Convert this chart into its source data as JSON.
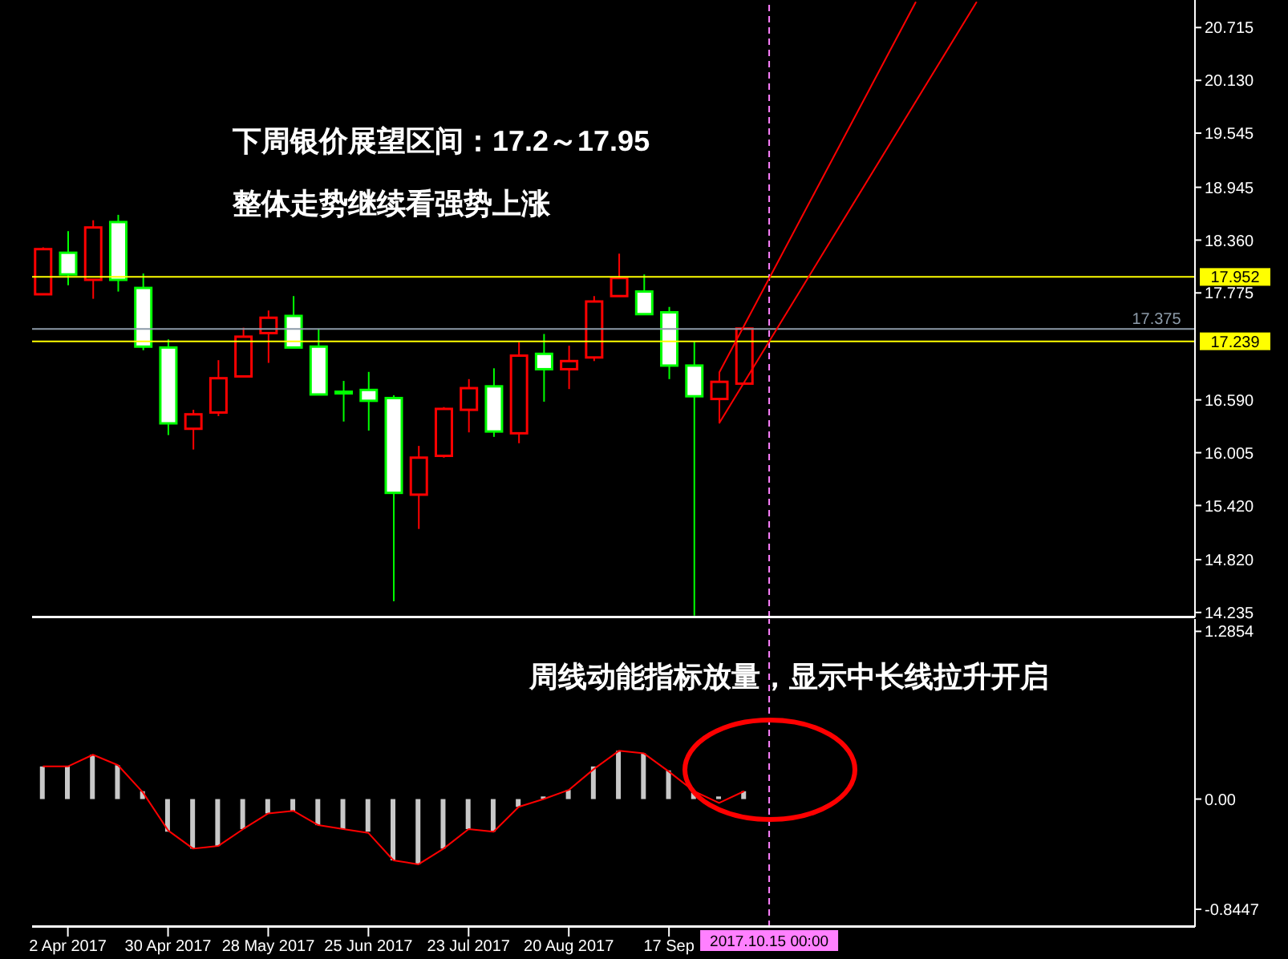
{
  "chart_data": [
    {
      "type": "candlestick",
      "annotations": [
        "下周银价展望区间：17.2～17.95",
        "整体走势继续看强势上涨"
      ],
      "x": [
        "2017-03-26",
        "2017-04-02",
        "2017-04-09",
        "2017-04-16",
        "2017-04-23",
        "2017-04-30",
        "2017-05-07",
        "2017-05-14",
        "2017-05-21",
        "2017-05-28",
        "2017-06-04",
        "2017-06-11",
        "2017-06-18",
        "2017-06-25",
        "2017-07-02",
        "2017-07-09",
        "2017-07-16",
        "2017-07-23",
        "2017-07-30",
        "2017-08-06",
        "2017-08-13",
        "2017-08-20",
        "2017-08-27",
        "2017-09-03",
        "2017-09-10",
        "2017-09-17",
        "2017-09-24",
        "2017-10-01",
        "2017-10-08"
      ],
      "ohlc": [
        [
          17.76,
          18.28,
          17.76,
          18.26
        ],
        [
          18.22,
          18.46,
          17.86,
          17.98
        ],
        [
          17.92,
          18.58,
          17.71,
          18.5
        ],
        [
          18.56,
          18.64,
          17.79,
          17.92
        ],
        [
          17.83,
          17.99,
          17.14,
          17.18
        ],
        [
          17.17,
          17.26,
          16.2,
          16.33
        ],
        [
          16.27,
          16.48,
          16.04,
          16.43
        ],
        [
          16.45,
          17.03,
          16.41,
          16.83
        ],
        [
          16.85,
          17.39,
          16.85,
          17.29
        ],
        [
          17.33,
          17.58,
          17.0,
          17.5
        ],
        [
          17.52,
          17.74,
          17.17,
          17.17
        ],
        [
          17.18,
          17.38,
          16.65,
          16.65
        ],
        [
          16.68,
          16.8,
          16.35,
          16.68
        ],
        [
          16.7,
          16.9,
          16.25,
          16.58
        ],
        [
          16.61,
          16.64,
          14.36,
          15.56
        ],
        [
          15.54,
          16.08,
          15.16,
          15.95
        ],
        [
          15.97,
          16.51,
          15.95,
          16.49
        ],
        [
          16.48,
          16.82,
          16.23,
          16.72
        ],
        [
          16.74,
          16.94,
          16.18,
          16.24
        ],
        [
          16.22,
          17.23,
          16.11,
          17.08
        ],
        [
          17.1,
          17.32,
          16.57,
          16.93
        ],
        [
          16.93,
          17.19,
          16.71,
          17.02
        ],
        [
          17.06,
          17.74,
          17.02,
          17.68
        ],
        [
          17.74,
          18.21,
          17.74,
          17.94
        ],
        [
          17.79,
          17.98,
          17.54,
          17.54
        ],
        [
          17.56,
          17.62,
          16.82,
          16.97
        ],
        [
          16.97,
          17.24,
          14.2,
          16.63
        ],
        [
          16.6,
          16.89,
          16.33,
          16.79
        ],
        [
          16.77,
          17.38,
          16.77,
          17.38
        ]
      ],
      "colors": [
        "#ff0000",
        "#00ff00",
        "#ff0000",
        "#00ff00",
        "#00ff00",
        "#00ff00",
        "#ff0000",
        "#ff0000",
        "#ff0000",
        "#ff0000",
        "#00ff00",
        "#00ff00",
        "#00ff00",
        "#00ff00",
        "#00ff00",
        "#ff0000",
        "#ff0000",
        "#ff0000",
        "#00ff00",
        "#ff0000",
        "#00ff00",
        "#ff0000",
        "#ff0000",
        "#ff0000",
        "#00ff00",
        "#00ff00",
        "#00ff00",
        "#ff0000",
        "#ff0000"
      ],
      "series": [
        {
          "type": "line",
          "color": "#ff0000",
          "x": [
            "2017-10-01",
            "2017-11-25"
          ],
          "values": [
            16.89,
            21.0
          ]
        },
        {
          "type": "line",
          "color": "#ff0000",
          "x": [
            "2017-10-01",
            "2017-12-12"
          ],
          "values": [
            16.33,
            21.0
          ]
        }
      ],
      "xlim": [
        "2017-03-23",
        "2018-02-11"
      ],
      "ylim": [
        14.18,
        21.02
      ],
      "yticks": [
        20.715,
        {
          "value": 20.13,
          "label": "20.130"
        },
        19.545,
        18.945,
        {
          "value": 18.36,
          "label": "18.360"
        },
        17.775,
        {
          "value": 16.59,
          "label": "16.590"
        },
        16.005,
        {
          "value": 15.42,
          "label": "15.420"
        },
        {
          "value": 14.82,
          "label": "14.820"
        },
        14.235
      ],
      "ref_lines": [
        {
          "axis": "y",
          "value": 17.952,
          "label": "17.952",
          "color": "#ffff00"
        },
        {
          "axis": "y",
          "value": 17.239,
          "label": "17.239",
          "color": "#ffff00"
        },
        {
          "axis": "y",
          "value": 17.375,
          "label": "17.375",
          "color": "#8c9aa8"
        },
        {
          "axis": "x",
          "value": "2017-10-15",
          "color": "#ff80ff",
          "line_style": "dashed"
        }
      ],
      "tick_labels": "y"
    },
    {
      "type": "bar",
      "annotations": [
        "周线动能指标放量，显示中长线拉升开启"
      ],
      "x": [
        "2017-03-26",
        "2017-04-02",
        "2017-04-09",
        "2017-04-16",
        "2017-04-23",
        "2017-04-30",
        "2017-05-07",
        "2017-05-14",
        "2017-05-21",
        "2017-05-28",
        "2017-06-04",
        "2017-06-11",
        "2017-06-18",
        "2017-06-25",
        "2017-07-02",
        "2017-07-09",
        "2017-07-16",
        "2017-07-23",
        "2017-07-30",
        "2017-08-06",
        "2017-08-13",
        "2017-08-20",
        "2017-08-27",
        "2017-09-03",
        "2017-09-10",
        "2017-09-17",
        "2017-09-24",
        "2017-10-01",
        "2017-10-08"
      ],
      "series": [
        {
          "type": "bar",
          "color": "#c8c8c8",
          "values": [
            0.25,
            0.25,
            0.34,
            0.26,
            0.06,
            -0.25,
            -0.38,
            -0.36,
            -0.23,
            -0.11,
            -0.09,
            -0.2,
            -0.23,
            -0.25,
            -0.47,
            -0.5,
            -0.38,
            -0.23,
            -0.25,
            -0.06,
            0.02,
            0.07,
            0.25,
            0.37,
            0.35,
            0.22,
            0.05,
            0.02,
            0.06
          ]
        },
        {
          "type": "line",
          "color": "#ff0000",
          "values": [
            0.25,
            0.25,
            0.34,
            0.26,
            0.05,
            -0.24,
            -0.38,
            -0.36,
            -0.23,
            -0.11,
            -0.09,
            -0.2,
            -0.23,
            -0.26,
            -0.47,
            -0.5,
            -0.38,
            -0.23,
            -0.25,
            -0.06,
            0.0,
            0.07,
            0.23,
            0.37,
            0.35,
            0.21,
            0.06,
            -0.03,
            0.06
          ]
        }
      ],
      "xlim": [
        "2017-03-23",
        "2018-02-11"
      ],
      "xticks": [
        {
          "value": "2017-04-02",
          "label": "2 Apr 2017"
        },
        {
          "value": "2017-04-30",
          "label": "30 Apr 2017"
        },
        {
          "value": "2017-05-28",
          "label": "28 May 2017"
        },
        {
          "value": "2017-06-25",
          "label": "25 Jun 2017"
        },
        {
          "value": "2017-07-23",
          "label": "23 Jul 2017"
        },
        {
          "value": "2017-08-20",
          "label": "20 Aug 2017"
        },
        {
          "value": "2017-09-17",
          "label": "17 Sep"
        }
      ],
      "ylim": [
        -0.98,
        1.38
      ],
      "yticks": [
        1.2854,
        {
          "value": 0,
          "label": "0.00"
        },
        -0.8447
      ],
      "ref_lines": [
        {
          "axis": "x",
          "value": "2017-10-15",
          "label": "2017.10.15 00:00",
          "color": "#ff80ff",
          "line_style": "dashed"
        }
      ]
    }
  ]
}
